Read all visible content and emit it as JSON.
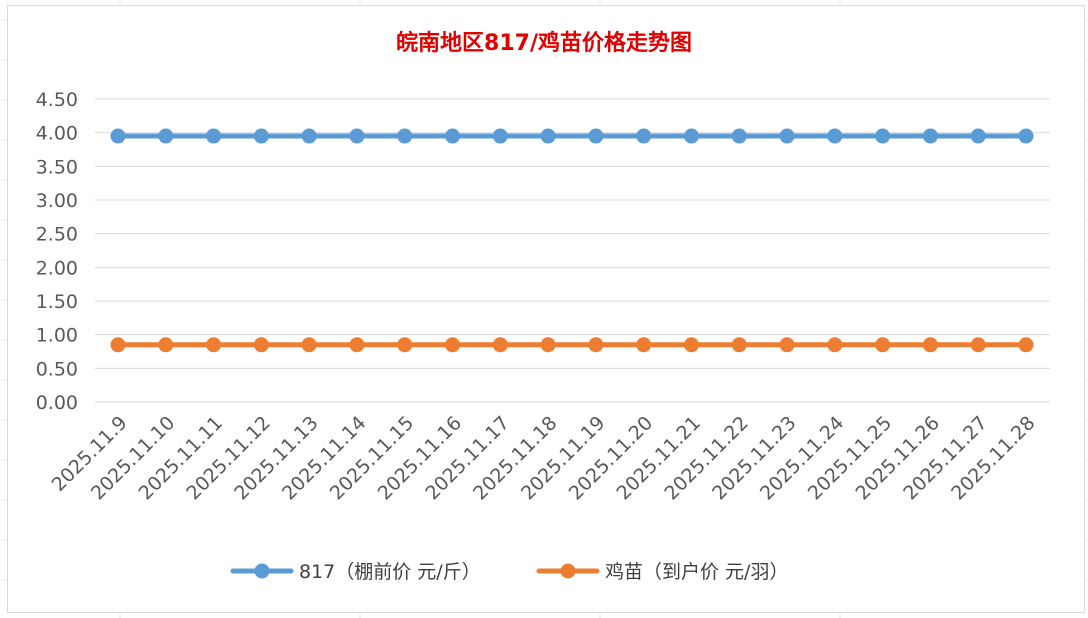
{
  "chart_data": {
    "type": "line",
    "title": "皖南地区817/鸡苗价格走势图",
    "title_color": "#e00000",
    "categories": [
      "2025.11.9",
      "2025.11.10",
      "2025.11.11",
      "2025.11.12",
      "2025.11.13",
      "2025.11.14",
      "2025.11.15",
      "2025.11.16",
      "2025.11.17",
      "2025.11.18",
      "2025.11.19",
      "2025.11.20",
      "2025.11.21",
      "2025.11.22",
      "2025.11.23",
      "2025.11.24",
      "2025.11.25",
      "2025.11.26",
      "2025.11.27",
      "2025.11.28"
    ],
    "y_ticks": [
      "0.00",
      "0.50",
      "1.00",
      "1.50",
      "2.00",
      "2.50",
      "3.00",
      "3.50",
      "4.00",
      "4.50"
    ],
    "ylim": [
      0,
      4.5
    ],
    "xlabel": "",
    "ylabel": "",
    "grid": true,
    "legend_position": "bottom",
    "series": [
      {
        "name": "817（棚前价 元/斤）",
        "color": "#5b9bd5",
        "values": [
          3.95,
          3.95,
          3.95,
          3.95,
          3.95,
          3.95,
          3.95,
          3.95,
          3.95,
          3.95,
          3.95,
          3.95,
          3.95,
          3.95,
          3.95,
          3.95,
          3.95,
          3.95,
          3.95,
          3.95
        ]
      },
      {
        "name": "鸡苗（到户价 元/羽）",
        "color": "#ed7d31",
        "values": [
          0.85,
          0.85,
          0.85,
          0.85,
          0.85,
          0.85,
          0.85,
          0.85,
          0.85,
          0.85,
          0.85,
          0.85,
          0.85,
          0.85,
          0.85,
          0.85,
          0.85,
          0.85,
          0.85,
          0.85
        ]
      }
    ]
  }
}
